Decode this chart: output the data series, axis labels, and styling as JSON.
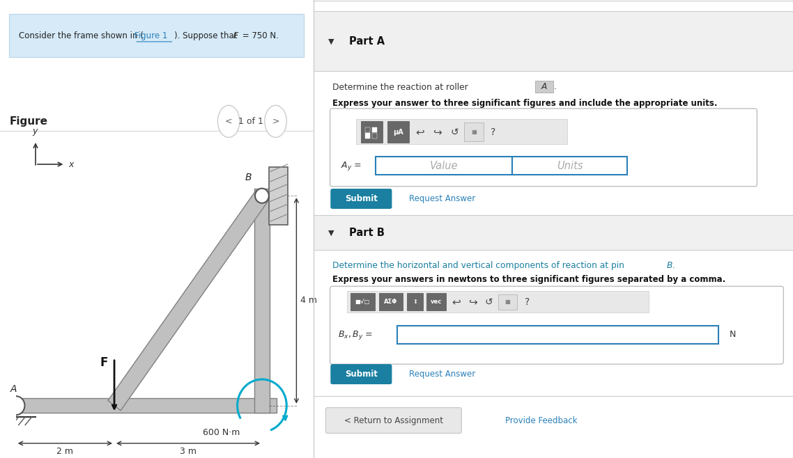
{
  "fig_width": 11.38,
  "fig_height": 6.58,
  "bg_color": "#ffffff",
  "problem_box_color": "#d6eaf8",
  "problem_box_edge": "#b8d4e8",
  "link_color": "#2980b9",
  "submit_color": "#1a7fa0",
  "input_border_color": "#2980b9",
  "teal_color": "#1a7fa0",
  "figure_label": "Figure",
  "nav_text": "1 of 1",
  "part_a_title": "Part A",
  "part_b_title": "Part B",
  "moment_label": "600 N·m",
  "dim_2m": "2 m",
  "dim_3m": "3 m",
  "dim_4m": "4 m",
  "point_A": "A",
  "point_B": "B",
  "force_label": "F",
  "coord_y": "y",
  "coord_x": "x",
  "N_label": "N",
  "return_btn_text": "< Return to Assignment",
  "feedback_text": "Provide Feedback"
}
